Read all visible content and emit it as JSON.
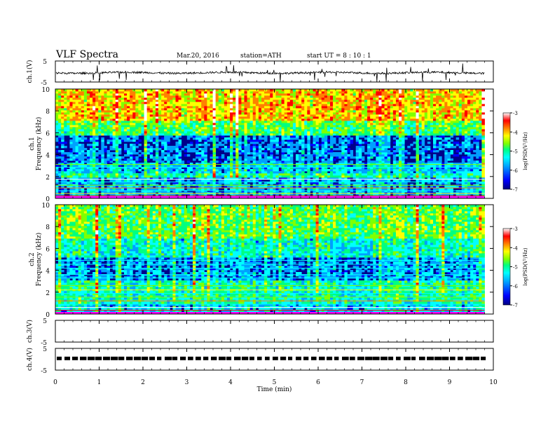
{
  "header": {
    "title": "VLF  Spectra",
    "date": "Mar.20, 2016",
    "station": "station=ATH",
    "start": "start  UT =   8  : 10 : 1"
  },
  "chart_data": [
    {
      "type": "line",
      "panel": "ch1",
      "ylabel": "ch.1(V)",
      "ylim": [
        -5,
        5
      ],
      "y_ticks": [
        "5",
        "-5"
      ],
      "xlim": [
        0,
        10
      ],
      "series": [
        {
          "values_description_level": -0.6
        }
      ]
    },
    {
      "type": "heatmap",
      "panel": "ch1-spectrogram",
      "ylabel_channel": "ch.1",
      "ylabel": "Frequency  (kHz)",
      "ylim": [
        0,
        10
      ],
      "y_ticks": [
        "0",
        "2",
        "4",
        "6",
        "8",
        "10"
      ],
      "xlim": [
        0,
        10
      ],
      "colorbar": {
        "label": "log(PSD(V²/Hz)",
        "range": [
          -7,
          -3
        ],
        "ticks": [
          "-3",
          "-4",
          "-5",
          "-6",
          "-7"
        ]
      }
    },
    {
      "type": "heatmap",
      "panel": "ch2-spectrogram",
      "ylabel_channel": "ch.2",
      "ylabel": "Frequency  (kHz)",
      "ylim": [
        0,
        10
      ],
      "y_ticks": [
        "0",
        "2",
        "4",
        "6",
        "8",
        "10"
      ],
      "xlim": [
        0,
        10
      ],
      "colorbar": {
        "label": "log(PSD(V²/Hz)",
        "range": [
          -7,
          -3
        ],
        "ticks": [
          "-3",
          "-4",
          "-5",
          "-6",
          "-7"
        ]
      }
    },
    {
      "type": "line",
      "panel": "ch3",
      "ylabel": "ch.3(V)",
      "ylim": [
        -5,
        5
      ],
      "y_ticks": [
        "5",
        "-5"
      ],
      "xlim": [
        0,
        10
      ]
    },
    {
      "type": "line",
      "panel": "ch4",
      "ylabel": "ch.4(V)",
      "ylim": [
        -5,
        5
      ],
      "y_ticks": [
        "5",
        "-5"
      ],
      "xlim": [
        0,
        10
      ],
      "series": [
        {
          "level": 0.4,
          "end_time": 9.8
        }
      ]
    }
  ],
  "xaxis": {
    "label": "Time  (min)",
    "ticks": [
      "0",
      "1",
      "2",
      "3",
      "4",
      "5",
      "6",
      "7",
      "8",
      "9",
      "10"
    ],
    "data_end_min": 9.8
  },
  "colors": {
    "spec_scale": [
      "#000080",
      "#0000ff",
      "#00a0ff",
      "#00ffff",
      "#00ff80",
      "#80ff00",
      "#ffff00",
      "#ff8000",
      "#ff0000",
      "#ffffff"
    ]
  }
}
